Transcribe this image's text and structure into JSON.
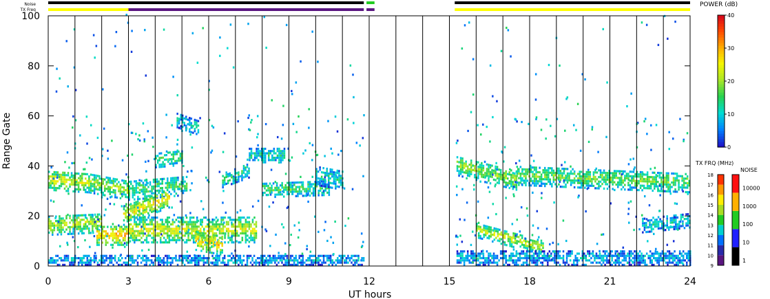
{
  "chart_data": {
    "type": "heatmap",
    "xlabel": "UT hours",
    "ylabel": "Range Gate",
    "xlim": [
      0,
      24
    ],
    "ylim": [
      0,
      100
    ],
    "xticks": [
      0,
      3,
      6,
      9,
      12,
      15,
      18,
      21,
      24
    ],
    "yticks": [
      0,
      20,
      40,
      60,
      80,
      100
    ],
    "data_gap": [
      11.9,
      15.2
    ],
    "hour_lines": [
      1,
      2,
      3,
      4,
      5,
      6,
      7,
      8,
      9,
      10,
      11,
      12,
      13,
      14,
      15,
      16,
      17,
      18,
      19,
      20,
      21,
      22,
      23
    ],
    "status_bars": {
      "noise_label": "Noise",
      "txfreq_label": "TX Freq",
      "noise_segments": [
        {
          "start": 0,
          "end": 11.8,
          "color": "#000000"
        },
        {
          "start": 11.9,
          "end": 12.2,
          "color": "#22cc22"
        },
        {
          "start": 15.2,
          "end": 24,
          "color": "#000000"
        }
      ],
      "txfreq_segments": [
        {
          "start": 0,
          "end": 3.0,
          "color": "#ffff00"
        },
        {
          "start": 3.0,
          "end": 11.8,
          "color": "#5a1680"
        },
        {
          "start": 11.9,
          "end": 12.2,
          "color": "#5a1680"
        },
        {
          "start": 15.2,
          "end": 24,
          "color": "#ffff00"
        }
      ]
    },
    "bands": [
      {
        "t0": 0.0,
        "t1": 1.5,
        "g0": 34,
        "g1": 33,
        "w": 4,
        "p": 24
      },
      {
        "t0": 1.5,
        "t1": 3.0,
        "g0": 33,
        "g1": 30,
        "w": 4,
        "p": 20
      },
      {
        "t0": 3.0,
        "t1": 5.2,
        "g0": 30,
        "g1": 32,
        "w": 4,
        "p": 16
      },
      {
        "t0": 0.0,
        "t1": 2.0,
        "g0": 16,
        "g1": 17,
        "w": 4,
        "p": 22
      },
      {
        "t0": 1.8,
        "t1": 3.0,
        "g0": 12,
        "g1": 12,
        "w": 4,
        "p": 30
      },
      {
        "t0": 2.8,
        "t1": 4.5,
        "g0": 20,
        "g1": 27,
        "w": 4,
        "p": 26
      },
      {
        "t0": 3.0,
        "t1": 7.8,
        "g0": 14,
        "g1": 14,
        "w": 5,
        "p": 24
      },
      {
        "t0": 5.5,
        "t1": 6.5,
        "g0": 10,
        "g1": 8,
        "w": 4,
        "p": 28
      },
      {
        "t0": 4.0,
        "t1": 5.0,
        "g0": 42,
        "g1": 43,
        "w": 3,
        "p": 16
      },
      {
        "t0": 6.5,
        "t1": 7.5,
        "g0": 34,
        "g1": 38,
        "w": 3,
        "p": 14
      },
      {
        "t0": 7.5,
        "t1": 8.8,
        "g0": 44,
        "g1": 44,
        "w": 3,
        "p": 12
      },
      {
        "t0": 8.0,
        "t1": 10.5,
        "g0": 30,
        "g1": 31,
        "w": 3,
        "p": 16
      },
      {
        "t0": 10.0,
        "t1": 11.0,
        "g0": 36,
        "g1": 34,
        "w": 4,
        "p": 12
      },
      {
        "t0": 4.8,
        "t1": 5.6,
        "g0": 58,
        "g1": 55,
        "w": 3,
        "p": 10
      },
      {
        "t0": 0.0,
        "t1": 11.8,
        "g0": 2,
        "g1": 2,
        "w": 2,
        "p": 8
      },
      {
        "t0": 15.2,
        "t1": 17.5,
        "g0": 40,
        "g1": 34,
        "w": 4,
        "p": 20
      },
      {
        "t0": 17.5,
        "t1": 24.0,
        "g0": 36,
        "g1": 33,
        "w": 4,
        "p": 18
      },
      {
        "t0": 16.0,
        "t1": 18.5,
        "g0": 14,
        "g1": 7,
        "w": 3,
        "p": 22
      },
      {
        "t0": 22.2,
        "t1": 24.0,
        "g0": 16,
        "g1": 18,
        "w": 3,
        "p": 10
      },
      {
        "t0": 15.2,
        "t1": 24.0,
        "g0": 3,
        "g1": 3,
        "w": 3,
        "p": 8
      }
    ],
    "colorbars": {
      "power": {
        "label": "POWER (dB)",
        "ticks": [
          0,
          10,
          20,
          30,
          40
        ]
      },
      "txfreq": {
        "label": "TX FRQ (MHz)",
        "ticks": [
          9,
          10,
          11,
          12,
          13,
          14,
          15,
          16,
          17,
          18
        ]
      },
      "noise": {
        "label": "NOISE",
        "ticks": [
          "1",
          "10",
          "100",
          "1000",
          "10000"
        ]
      }
    }
  }
}
